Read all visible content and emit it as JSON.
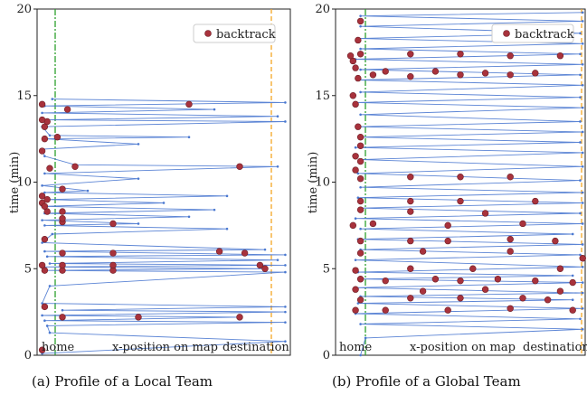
{
  "chart_data": [
    {
      "type": "line",
      "panel": "a",
      "caption": "(a) Profile of a Local Team",
      "ylabel": "time (min)",
      "xlabel": "x-position on map",
      "x_left_label": "home",
      "x_right_label": "destination",
      "ylim": [
        0,
        20
      ],
      "yticks": [
        0,
        5,
        10,
        15,
        20
      ],
      "legend": {
        "label": "backtrack",
        "placement": "top-right"
      },
      "reference_lines": {
        "home": 0.05,
        "destination": 0.96
      },
      "series": [
        {
          "name": "trajectory",
          "points": [
            [
              0.02,
              0.1
            ],
            [
              0.98,
              0.8
            ],
            [
              0.05,
              1.3
            ],
            [
              0.04,
              1.7
            ],
            [
              0.98,
              1.9
            ],
            [
              0.03,
              2.0
            ],
            [
              0.8,
              2.2
            ],
            [
              0.02,
              2.3
            ],
            [
              0.98,
              2.5
            ],
            [
              0.1,
              2.6
            ],
            [
              0.98,
              2.8
            ],
            [
              0.02,
              3.0
            ],
            [
              0.05,
              4.0
            ],
            [
              0.98,
              4.8
            ],
            [
              0.03,
              4.9
            ],
            [
              0.9,
              5.0
            ],
            [
              0.02,
              5.1
            ],
            [
              0.98,
              5.2
            ],
            [
              0.05,
              5.3
            ],
            [
              0.95,
              5.5
            ],
            [
              0.04,
              5.7
            ],
            [
              0.98,
              5.8
            ],
            [
              0.03,
              6.0
            ],
            [
              0.9,
              6.1
            ],
            [
              0.02,
              6.5
            ],
            [
              0.06,
              7.0
            ],
            [
              0.75,
              7.3
            ],
            [
              0.03,
              7.5
            ],
            [
              0.4,
              7.6
            ],
            [
              0.02,
              7.8
            ],
            [
              0.6,
              8.0
            ],
            [
              0.03,
              8.2
            ],
            [
              0.7,
              8.4
            ],
            [
              0.02,
              8.6
            ],
            [
              0.5,
              8.8
            ],
            [
              0.04,
              9.0
            ],
            [
              0.75,
              9.2
            ],
            [
              0.03,
              9.4
            ],
            [
              0.2,
              9.5
            ],
            [
              0.02,
              9.8
            ],
            [
              0.4,
              10.2
            ],
            [
              0.03,
              10.5
            ],
            [
              0.95,
              10.9
            ],
            [
              0.15,
              11.0
            ],
            [
              0.03,
              11.5
            ],
            [
              0.02,
              11.9
            ],
            [
              0.4,
              12.2
            ],
            [
              0.03,
              12.5
            ],
            [
              0.6,
              12.6
            ],
            [
              0.05,
              12.7
            ],
            [
              0.02,
              13.2
            ],
            [
              0.98,
              13.5
            ],
            [
              0.04,
              13.6
            ],
            [
              0.95,
              13.8
            ],
            [
              0.02,
              14.0
            ],
            [
              0.7,
              14.2
            ],
            [
              0.03,
              14.4
            ],
            [
              0.98,
              14.6
            ],
            [
              0.06,
              14.8
            ]
          ]
        },
        {
          "name": "backtrack",
          "points": [
            [
              0.02,
              0.3
            ],
            [
              0.1,
              2.2
            ],
            [
              0.4,
              2.2
            ],
            [
              0.8,
              2.2
            ],
            [
              0.03,
              2.8
            ],
            [
              0.03,
              4.9
            ],
            [
              0.1,
              4.9
            ],
            [
              0.3,
              4.9
            ],
            [
              0.9,
              5.0
            ],
            [
              0.02,
              5.2
            ],
            [
              0.1,
              5.2
            ],
            [
              0.3,
              5.2
            ],
            [
              0.88,
              5.2
            ],
            [
              0.1,
              5.9
            ],
            [
              0.3,
              5.9
            ],
            [
              0.72,
              6.0
            ],
            [
              0.82,
              5.9
            ],
            [
              0.03,
              6.7
            ],
            [
              0.3,
              7.6
            ],
            [
              0.1,
              7.7
            ],
            [
              0.1,
              7.9
            ],
            [
              0.04,
              8.3
            ],
            [
              0.1,
              8.3
            ],
            [
              0.02,
              8.8
            ],
            [
              0.03,
              8.6
            ],
            [
              0.04,
              9.0
            ],
            [
              0.02,
              9.2
            ],
            [
              0.1,
              9.6
            ],
            [
              0.05,
              10.8
            ],
            [
              0.15,
              10.9
            ],
            [
              0.8,
              10.9
            ],
            [
              0.02,
              11.8
            ],
            [
              0.08,
              12.6
            ],
            [
              0.03,
              12.5
            ],
            [
              0.03,
              13.2
            ],
            [
              0.04,
              13.5
            ],
            [
              0.02,
              13.6
            ],
            [
              0.12,
              14.2
            ],
            [
              0.02,
              14.5
            ],
            [
              0.6,
              14.5
            ]
          ]
        }
      ]
    },
    {
      "type": "line",
      "panel": "b",
      "caption": "(b) Profile of a Global Team",
      "ylabel": "time (min)",
      "xlabel": "x-position on map",
      "x_left_label": "home",
      "x_right_label": "destination",
      "ylim": [
        0,
        20
      ],
      "yticks": [
        0,
        5,
        10,
        15,
        20
      ],
      "legend": {
        "label": "backtrack",
        "placement": "top-right"
      },
      "reference_lines": {
        "home": 0.11,
        "destination": 0.99
      },
      "series": [
        {
          "name": "trajectory",
          "points": [
            [
              0.1,
              0.0
            ],
            [
              0.12,
              1.0
            ],
            [
              0.99,
              1.5
            ],
            [
              0.1,
              1.8
            ],
            [
              0.98,
              2.1
            ],
            [
              0.08,
              2.4
            ],
            [
              0.99,
              2.7
            ],
            [
              0.09,
              3.0
            ],
            [
              0.95,
              3.2
            ],
            [
              0.1,
              3.4
            ],
            [
              0.99,
              3.6
            ],
            [
              0.08,
              3.9
            ],
            [
              0.99,
              4.2
            ],
            [
              0.1,
              4.4
            ],
            [
              0.95,
              4.6
            ],
            [
              0.09,
              4.8
            ],
            [
              0.99,
              5.1
            ],
            [
              0.08,
              5.5
            ],
            [
              0.98,
              5.8
            ],
            [
              0.1,
              6.1
            ],
            [
              0.99,
              6.4
            ],
            [
              0.09,
              6.7
            ],
            [
              0.95,
              7.0
            ],
            [
              0.1,
              7.3
            ],
            [
              0.99,
              7.6
            ],
            [
              0.08,
              7.9
            ],
            [
              0.98,
              8.2
            ],
            [
              0.1,
              8.5
            ],
            [
              0.99,
              8.8
            ],
            [
              0.09,
              9.1
            ],
            [
              0.99,
              9.4
            ],
            [
              0.1,
              9.7
            ],
            [
              0.98,
              10.1
            ],
            [
              0.09,
              10.5
            ],
            [
              0.99,
              10.9
            ],
            [
              0.1,
              11.3
            ],
            [
              0.99,
              11.7
            ],
            [
              0.08,
              12.0
            ],
            [
              0.98,
              12.3
            ],
            [
              0.1,
              12.6
            ],
            [
              0.99,
              12.9
            ],
            [
              0.09,
              13.2
            ],
            [
              0.98,
              13.5
            ],
            [
              0.1,
              13.9
            ],
            [
              0.99,
              14.3
            ],
            [
              0.08,
              14.6
            ],
            [
              0.98,
              14.9
            ],
            [
              0.1,
              15.2
            ],
            [
              0.99,
              15.6
            ],
            [
              0.09,
              15.9
            ],
            [
              0.98,
              16.2
            ],
            [
              0.1,
              16.5
            ],
            [
              0.99,
              16.8
            ],
            [
              0.08,
              17.1
            ],
            [
              0.98,
              17.4
            ],
            [
              0.1,
              17.7
            ],
            [
              0.99,
              18.0
            ],
            [
              0.09,
              18.3
            ],
            [
              0.98,
              18.6
            ],
            [
              0.1,
              19.0
            ],
            [
              0.99,
              19.3
            ],
            [
              0.1,
              19.6
            ],
            [
              0.99,
              19.8
            ]
          ]
        },
        {
          "name": "backtrack",
          "points": [
            [
              0.08,
              2.6
            ],
            [
              0.2,
              2.6
            ],
            [
              0.45,
              2.6
            ],
            [
              0.7,
              2.7
            ],
            [
              0.95,
              2.6
            ],
            [
              0.1,
              3.2
            ],
            [
              0.3,
              3.3
            ],
            [
              0.5,
              3.3
            ],
            [
              0.75,
              3.3
            ],
            [
              0.85,
              3.2
            ],
            [
              0.08,
              3.8
            ],
            [
              0.35,
              3.7
            ],
            [
              0.6,
              3.8
            ],
            [
              0.9,
              3.7
            ],
            [
              0.1,
              4.4
            ],
            [
              0.2,
              4.3
            ],
            [
              0.4,
              4.4
            ],
            [
              0.5,
              4.3
            ],
            [
              0.65,
              4.4
            ],
            [
              0.8,
              4.3
            ],
            [
              0.95,
              4.2
            ],
            [
              0.08,
              4.9
            ],
            [
              0.3,
              5.0
            ],
            [
              0.55,
              5.0
            ],
            [
              0.9,
              5.0
            ],
            [
              0.1,
              5.9
            ],
            [
              0.35,
              6.0
            ],
            [
              0.7,
              6.0
            ],
            [
              0.99,
              5.6
            ],
            [
              0.1,
              6.6
            ],
            [
              0.3,
              6.6
            ],
            [
              0.45,
              6.6
            ],
            [
              0.7,
              6.7
            ],
            [
              0.88,
              6.6
            ],
            [
              0.07,
              7.5
            ],
            [
              0.15,
              7.6
            ],
            [
              0.45,
              7.5
            ],
            [
              0.75,
              7.6
            ],
            [
              0.1,
              8.4
            ],
            [
              0.3,
              8.3
            ],
            [
              0.6,
              8.2
            ],
            [
              0.1,
              8.9
            ],
            [
              0.3,
              8.9
            ],
            [
              0.5,
              8.9
            ],
            [
              0.8,
              8.9
            ],
            [
              0.1,
              10.2
            ],
            [
              0.3,
              10.3
            ],
            [
              0.5,
              10.3
            ],
            [
              0.7,
              10.3
            ],
            [
              0.08,
              10.7
            ],
            [
              0.1,
              11.2
            ],
            [
              0.08,
              11.5
            ],
            [
              0.1,
              12.1
            ],
            [
              0.1,
              12.6
            ],
            [
              0.09,
              13.2
            ],
            [
              0.08,
              14.5
            ],
            [
              0.07,
              15.0
            ],
            [
              0.09,
              16.0
            ],
            [
              0.15,
              16.2
            ],
            [
              0.3,
              16.1
            ],
            [
              0.5,
              16.2
            ],
            [
              0.7,
              16.2
            ],
            [
              0.08,
              16.6
            ],
            [
              0.2,
              16.4
            ],
            [
              0.4,
              16.4
            ],
            [
              0.6,
              16.3
            ],
            [
              0.8,
              16.3
            ],
            [
              0.07,
              17.0
            ],
            [
              0.1,
              17.4
            ],
            [
              0.3,
              17.4
            ],
            [
              0.5,
              17.4
            ],
            [
              0.7,
              17.3
            ],
            [
              0.9,
              17.3
            ],
            [
              0.06,
              17.3
            ],
            [
              0.09,
              18.2
            ],
            [
              0.1,
              19.3
            ]
          ]
        }
      ]
    }
  ]
}
